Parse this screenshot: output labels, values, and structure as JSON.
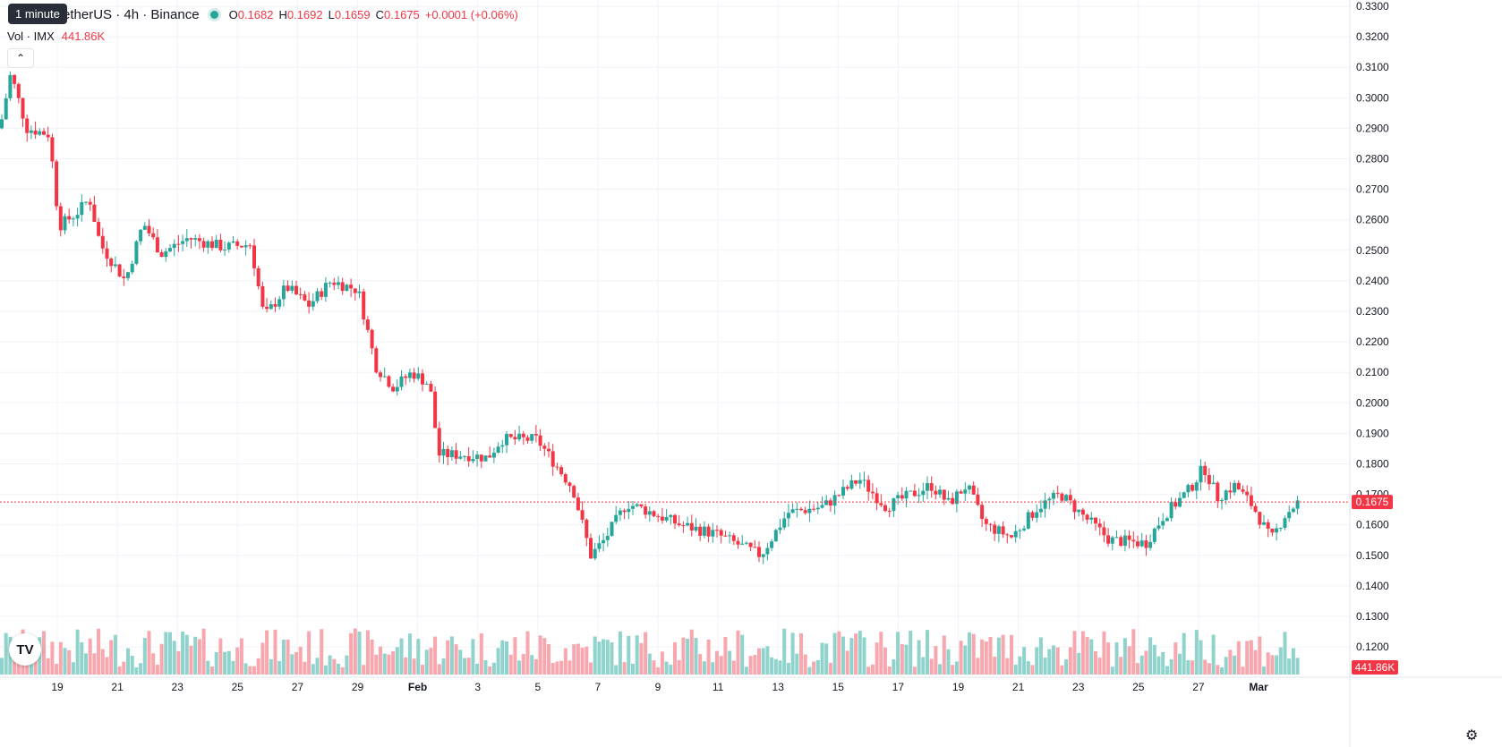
{
  "legend": {
    "tooltip": "1 minute",
    "symbol": "etherUS · 4h · Binance",
    "open_label": "O",
    "open": "0.1682",
    "high_label": "H",
    "high": "0.1692",
    "low_label": "L",
    "low": "0.1659",
    "close_label": "C",
    "close": "0.1675",
    "change": "+0.0001 (+0.06%)"
  },
  "volume_legend": {
    "label": "Vol · IMX",
    "value": "441.86K"
  },
  "icons": {
    "collapse": "chevron-up-icon",
    "logo": "tradingview-logo-icon",
    "settings": "gear-icon"
  },
  "colors": {
    "up": "#26a69a",
    "down": "#f23645",
    "vol_up": "#8fd3cc",
    "vol_down": "#f7a7ad",
    "grid": "#f0f3fa"
  },
  "chart_data": {
    "type": "candlestick",
    "y_ticks": [
      "0.3300",
      "0.3200",
      "0.3100",
      "0.3000",
      "0.2900",
      "0.2800",
      "0.2700",
      "0.2600",
      "0.2500",
      "0.2400",
      "0.2300",
      "0.2200",
      "0.2100",
      "0.2000",
      "0.1900",
      "0.1800",
      "0.1700",
      "0.1600",
      "0.1500",
      "0.1400",
      "0.1300",
      "0.1200"
    ],
    "x_ticks": [
      "19",
      "21",
      "23",
      "25",
      "27",
      "29",
      "Feb",
      "3",
      "5",
      "7",
      "9",
      "11",
      "13",
      "15",
      "17",
      "19",
      "21",
      "23",
      "25",
      "27",
      "Mar"
    ],
    "ylim": [
      0.115,
      0.332
    ],
    "current_price": "0.1675",
    "last_volume": "441.86K",
    "price_path": [
      [
        0,
        0.29
      ],
      [
        12,
        0.308
      ],
      [
        30,
        0.29
      ],
      [
        55,
        0.288
      ],
      [
        66,
        0.258
      ],
      [
        85,
        0.262
      ],
      [
        100,
        0.267
      ],
      [
        112,
        0.252
      ],
      [
        140,
        0.24
      ],
      [
        160,
        0.259
      ],
      [
        180,
        0.249
      ],
      [
        210,
        0.254
      ],
      [
        250,
        0.251
      ],
      [
        280,
        0.252
      ],
      [
        295,
        0.228
      ],
      [
        320,
        0.238
      ],
      [
        345,
        0.232
      ],
      [
        370,
        0.24
      ],
      [
        400,
        0.237
      ],
      [
        420,
        0.212
      ],
      [
        440,
        0.205
      ],
      [
        460,
        0.21
      ],
      [
        480,
        0.206
      ],
      [
        490,
        0.183
      ],
      [
        520,
        0.183
      ],
      [
        545,
        0.182
      ],
      [
        560,
        0.188
      ],
      [
        600,
        0.188
      ],
      [
        640,
        0.172
      ],
      [
        660,
        0.15
      ],
      [
        675,
        0.155
      ],
      [
        700,
        0.167
      ],
      [
        720,
        0.165
      ],
      [
        760,
        0.16
      ],
      [
        800,
        0.157
      ],
      [
        850,
        0.15
      ],
      [
        880,
        0.164
      ],
      [
        920,
        0.166
      ],
      [
        960,
        0.175
      ],
      [
        990,
        0.166
      ],
      [
        1040,
        0.173
      ],
      [
        1060,
        0.167
      ],
      [
        1080,
        0.173
      ],
      [
        1100,
        0.16
      ],
      [
        1130,
        0.156
      ],
      [
        1160,
        0.166
      ],
      [
        1185,
        0.17
      ],
      [
        1210,
        0.163
      ],
      [
        1240,
        0.155
      ],
      [
        1280,
        0.154
      ],
      [
        1300,
        0.163
      ],
      [
        1330,
        0.172
      ],
      [
        1345,
        0.179
      ],
      [
        1360,
        0.169
      ],
      [
        1380,
        0.173
      ],
      [
        1400,
        0.166
      ],
      [
        1420,
        0.155
      ],
      [
        1435,
        0.163
      ],
      [
        1450,
        0.1675
      ]
    ],
    "volume_level": 0.25
  }
}
